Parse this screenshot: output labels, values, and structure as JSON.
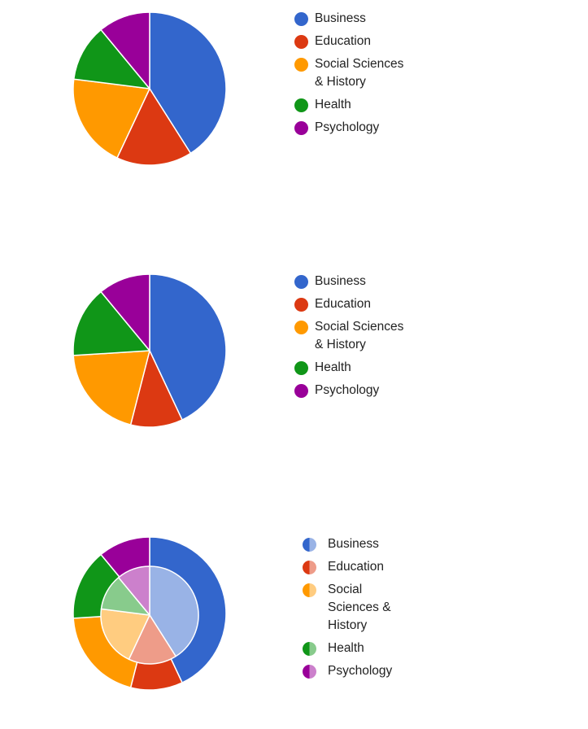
{
  "chart_data": [
    {
      "type": "pie",
      "categories": [
        "Business",
        "Education",
        "Social Sciences & History",
        "Health",
        "Psychology"
      ],
      "values": [
        41,
        16,
        20,
        12,
        11
      ],
      "colors": [
        "#3366cc",
        "#dc3912",
        "#ff9900",
        "#109618",
        "#990099"
      ],
      "legend_position": "right",
      "legend_labels": [
        [
          "Business"
        ],
        [
          "Education"
        ],
        [
          "Social Sciences",
          "& History"
        ],
        [
          "Health"
        ],
        [
          "Psychology"
        ]
      ]
    },
    {
      "type": "pie",
      "categories": [
        "Business",
        "Education",
        "Social Sciences & History",
        "Health",
        "Psychology"
      ],
      "values": [
        43,
        11,
        20,
        15,
        11
      ],
      "colors": [
        "#3366cc",
        "#dc3912",
        "#ff9900",
        "#109618",
        "#990099"
      ],
      "legend_position": "right",
      "legend_labels": [
        [
          "Business"
        ],
        [
          "Education"
        ],
        [
          "Social Sciences",
          "& History"
        ],
        [
          "Health"
        ],
        [
          "Psychology"
        ]
      ]
    },
    {
      "type": "pie",
      "categories": [
        "Business",
        "Education",
        "Social Sciences & History",
        "Health",
        "Psychology"
      ],
      "series": [
        {
          "values": [
            43,
            11,
            20,
            15,
            11
          ]
        },
        {
          "values": [
            41,
            16,
            20,
            12,
            11
          ]
        }
      ],
      "colors": [
        "#3366cc",
        "#dc3912",
        "#ff9900",
        "#109618",
        "#990099"
      ],
      "light_colors": [
        "#99b3e6",
        "#ee9c89",
        "#ffcc80",
        "#88cb8c",
        "#cc80cc"
      ],
      "legend_position": "right",
      "legend_labels": [
        [
          "Business"
        ],
        [
          "Education"
        ],
        [
          "Social",
          "Sciences &",
          "History"
        ],
        [
          "Health"
        ],
        [
          "Psychology"
        ]
      ]
    }
  ]
}
